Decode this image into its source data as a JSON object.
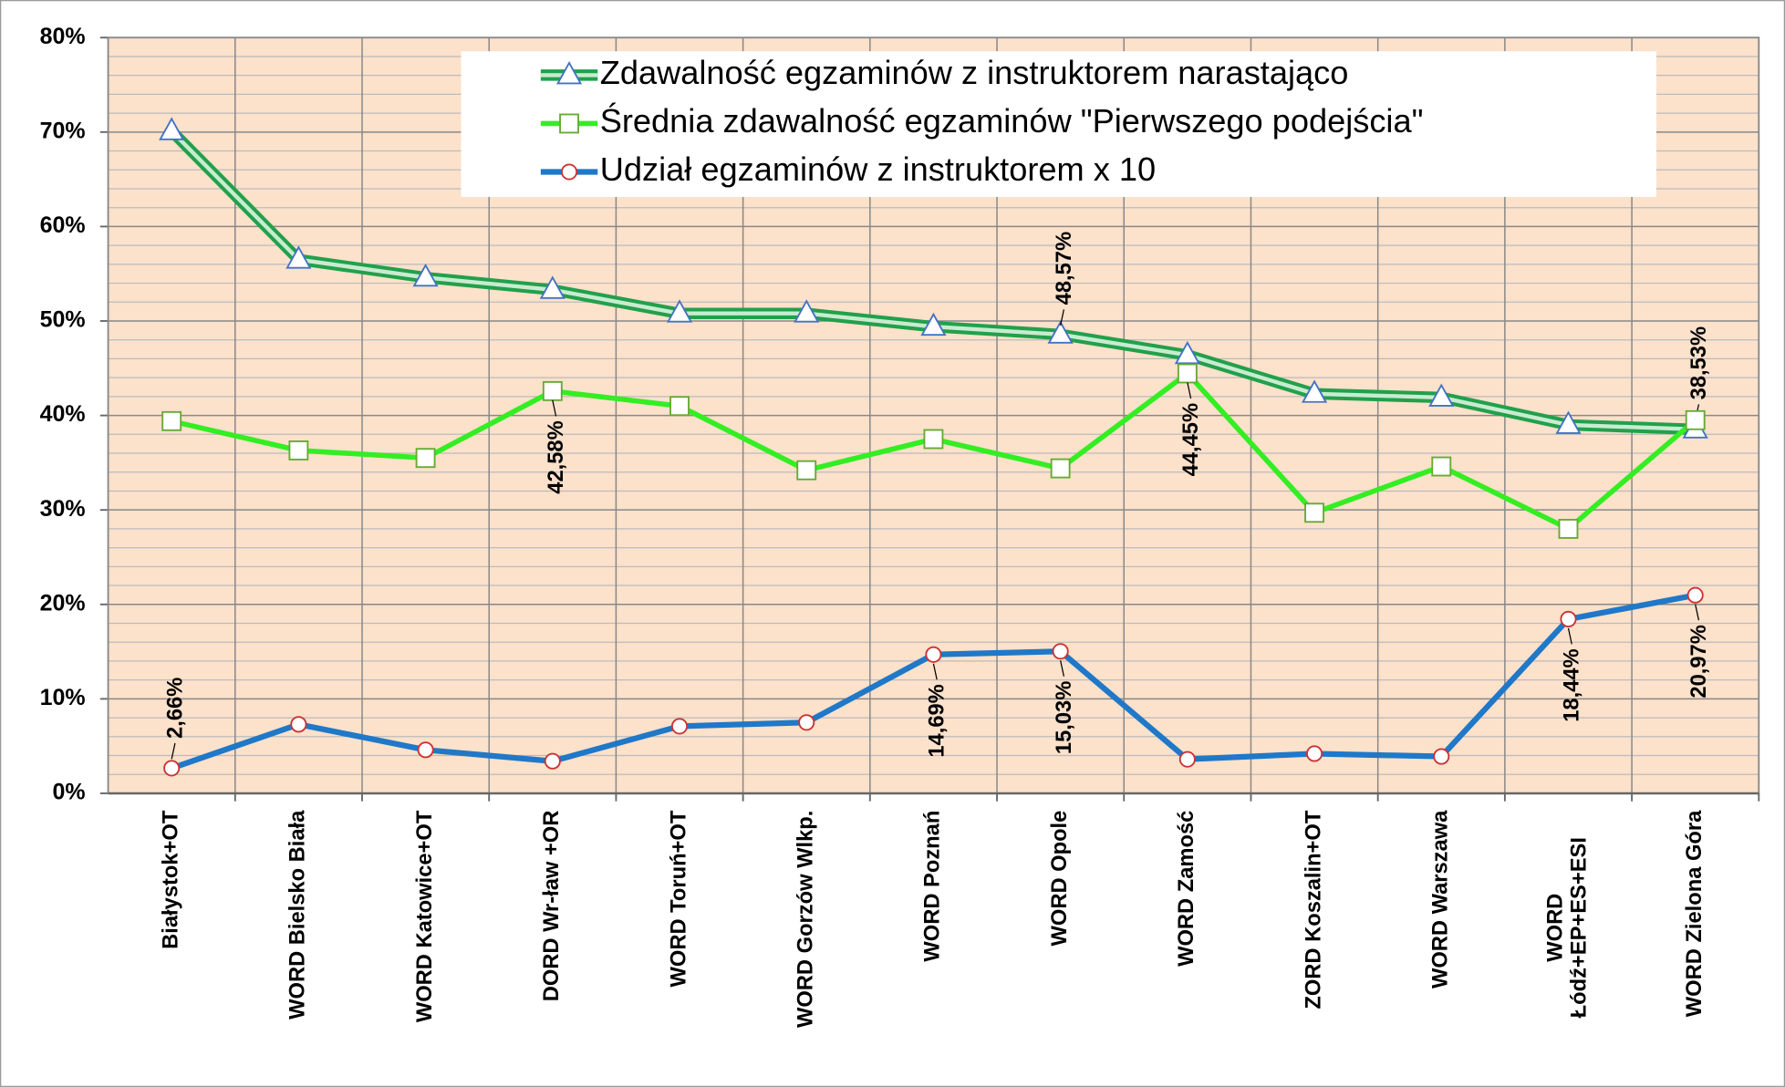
{
  "chart_data": {
    "type": "line",
    "categories": [
      "Białystok+OT",
      "WORD Bielsko Biała",
      "WORD Katowice+OT",
      "DORD Wr-ław +OR",
      "WORD Toruń+OT",
      "WORD Gorzów Wlkp.",
      "WORD Poznań",
      "WORD Opole",
      "WORD Zamość",
      "ZORD Koszalin+OT",
      "WORD Warszawa",
      "WORD\nŁódź+EP+ES+ESI",
      "WORD Zielona Góra"
    ],
    "series": [
      {
        "name": "Zdawalność egzaminów z instruktorem narastająco",
        "color": "#22a04b",
        "values": [
          70.1,
          56.5,
          54.6,
          53.3,
          50.8,
          50.8,
          49.4,
          48.57,
          46.4,
          42.3,
          41.9,
          39.0,
          38.53
        ],
        "value_labels": [
          null,
          null,
          null,
          null,
          null,
          null,
          null,
          "48,57%",
          null,
          null,
          null,
          null,
          "38,53%"
        ]
      },
      {
        "name": "Średnia zdawalność egzaminów \"Pierwszego podejścia\"",
        "color": "#33ee22",
        "values": [
          39.4,
          36.3,
          35.5,
          42.58,
          41.0,
          34.2,
          37.5,
          34.4,
          44.45,
          29.7,
          34.6,
          28.0,
          39.5
        ],
        "value_labels": [
          null,
          null,
          null,
          "42,58%",
          null,
          null,
          null,
          null,
          "44,45%",
          null,
          null,
          null,
          null
        ]
      },
      {
        "name": "Udział egzaminów z instruktorem x 10",
        "color": "#1f78c8",
        "values": [
          2.66,
          7.3,
          4.6,
          3.4,
          7.1,
          7.5,
          14.69,
          15.03,
          3.6,
          4.2,
          3.9,
          18.44,
          20.97
        ],
        "value_labels": [
          "2,66%",
          null,
          null,
          null,
          null,
          null,
          "14,69%",
          "15,03%",
          null,
          null,
          null,
          "18,44%",
          "20,97%"
        ]
      }
    ],
    "ylim": [
      0,
      80
    ],
    "yticks": [
      {
        "value": 0,
        "label": "0%"
      },
      {
        "value": 10,
        "label": "10%"
      },
      {
        "value": 20,
        "label": "20%"
      },
      {
        "value": 30,
        "label": "30%"
      },
      {
        "value": 40,
        "label": "40%"
      },
      {
        "value": 50,
        "label": "50%"
      },
      {
        "value": 60,
        "label": "60%"
      },
      {
        "value": 70,
        "label": "70%"
      },
      {
        "value": 80,
        "label": "80%"
      }
    ],
    "yticks_minor": [
      2,
      4,
      6,
      8,
      12,
      14,
      16,
      18,
      22,
      24,
      26,
      28,
      32,
      34,
      36,
      38,
      42,
      44,
      46,
      48,
      52,
      54,
      56,
      58,
      62,
      64,
      66,
      68,
      72,
      74,
      76,
      78
    ],
    "grid": true,
    "legend": "top"
  }
}
